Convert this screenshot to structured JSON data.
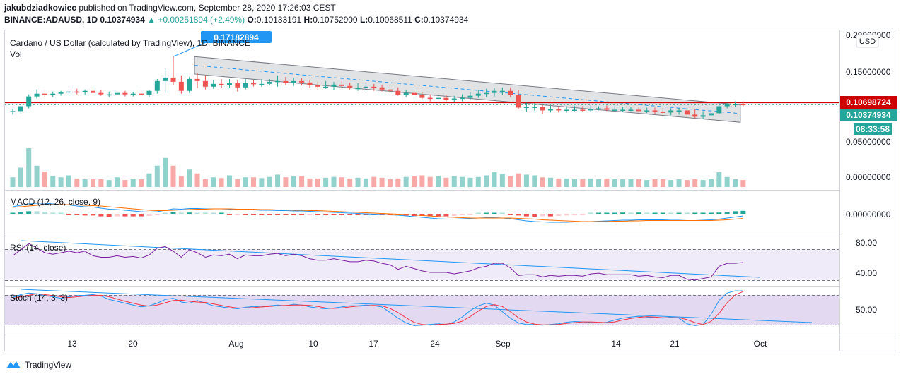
{
  "header": {
    "user": "jakubdziadkowiec",
    "published": " published on TradingView.com, September 28, 2020 17:26:03 CEST",
    "symbol": "BINANCE:ADAUSD, 1D",
    "close_value": "0.10374934",
    "change": "▲ +0.00251894 (+2.49%)",
    "o_label": "O:",
    "o_value": "0.10133191",
    "h_label": "H:",
    "h_value": "0.10752900",
    "l_label": "L:",
    "l_value": "0.10068511",
    "c_label": "C:",
    "c_value": "0.10374934"
  },
  "main_pane": {
    "title": "Cardano / US Dollar (calculated by TradingView), 1D, BINANCE",
    "vol_label": "Vol",
    "high_callout": "0.17182894",
    "currency": "USD",
    "y_ticks": [
      "0.20000000",
      "0.15000000",
      "0.10000000",
      "0.05000000",
      "0.00000000"
    ],
    "price_line_label": "0.10698724",
    "last_price_label": "0.10374934",
    "countdown_label": "08:33:58"
  },
  "macd_pane": {
    "title": "MACD (12, 26, close, 9)",
    "tick": "0.00000000"
  },
  "rsi_pane": {
    "title": "RSI (14, close)",
    "ticks": [
      "80.00",
      "40.00"
    ]
  },
  "stoch_pane": {
    "title": "Stoch (14, 3, 3)",
    "tick": "50.00"
  },
  "x_axis": {
    "labels": [
      "13",
      "20",
      "Aug",
      "10",
      "17",
      "24",
      "Sep",
      "14",
      "21",
      "Oct"
    ]
  },
  "footer": {
    "brand": "TradingView"
  },
  "colors": {
    "up": "#26a69a",
    "down": "#ef5350",
    "resistance": "#cc0000",
    "callout": "#2196f3",
    "macd": "#2196f3",
    "signal": "#ff6d00",
    "rsi": "#7b1fa2",
    "stoch_k": "#2196f3",
    "stoch_d": "#f23645"
  },
  "chart_data": [
    {
      "type": "line",
      "subtype": "candlestick",
      "title": "Cardano / US Dollar (calculated by TradingView), 1D, BINANCE",
      "x_start": "2020-07-06",
      "ylim": [
        0.02,
        0.21
      ],
      "open": [
        0.093,
        0.094,
        0.101,
        0.115,
        0.119,
        0.117,
        0.119,
        0.121,
        0.122,
        0.121,
        0.123,
        0.12,
        0.118,
        0.118,
        0.12,
        0.118,
        0.119,
        0.117,
        0.123,
        0.137,
        0.142,
        0.136,
        0.123,
        0.14,
        0.137,
        0.129,
        0.133,
        0.131,
        0.134,
        0.128,
        0.134,
        0.133,
        0.133,
        0.136,
        0.137,
        0.134,
        0.137,
        0.135,
        0.131,
        0.129,
        0.129,
        0.132,
        0.13,
        0.127,
        0.127,
        0.129,
        0.128,
        0.125,
        0.123,
        0.117,
        0.12,
        0.117,
        0.113,
        0.112,
        0.113,
        0.11,
        0.112,
        0.113,
        0.116,
        0.119,
        0.12,
        0.123,
        0.123,
        0.117,
        0.099,
        0.1,
        0.1,
        0.095,
        0.097,
        0.095,
        0.096,
        0.096,
        0.095,
        0.097,
        0.098,
        0.096,
        0.096,
        0.096,
        0.096,
        0.094,
        0.095,
        0.093,
        0.092,
        0.095,
        0.095,
        0.089,
        0.086,
        0.088,
        0.091,
        0.101,
        0.104,
        0.104
      ],
      "high": [
        0.097,
        0.103,
        0.118,
        0.125,
        0.124,
        0.122,
        0.123,
        0.126,
        0.126,
        0.125,
        0.127,
        0.124,
        0.122,
        0.121,
        0.123,
        0.121,
        0.124,
        0.124,
        0.14,
        0.155,
        0.172,
        0.145,
        0.143,
        0.148,
        0.145,
        0.139,
        0.14,
        0.14,
        0.139,
        0.14,
        0.139,
        0.14,
        0.14,
        0.145,
        0.143,
        0.142,
        0.141,
        0.139,
        0.136,
        0.137,
        0.136,
        0.137,
        0.135,
        0.134,
        0.134,
        0.133,
        0.132,
        0.131,
        0.128,
        0.124,
        0.124,
        0.121,
        0.118,
        0.117,
        0.117,
        0.116,
        0.118,
        0.121,
        0.124,
        0.126,
        0.127,
        0.128,
        0.128,
        0.124,
        0.106,
        0.105,
        0.103,
        0.102,
        0.101,
        0.101,
        0.101,
        0.101,
        0.102,
        0.101,
        0.102,
        0.101,
        0.1,
        0.1,
        0.1,
        0.099,
        0.099,
        0.099,
        0.098,
        0.098,
        0.098,
        0.097,
        0.094,
        0.096,
        0.106,
        0.106,
        0.108,
        0.108
      ],
      "low": [
        0.089,
        0.091,
        0.098,
        0.112,
        0.115,
        0.114,
        0.116,
        0.118,
        0.118,
        0.117,
        0.117,
        0.116,
        0.114,
        0.116,
        0.115,
        0.115,
        0.116,
        0.114,
        0.119,
        0.12,
        0.132,
        0.119,
        0.12,
        0.127,
        0.125,
        0.126,
        0.127,
        0.127,
        0.122,
        0.125,
        0.129,
        0.129,
        0.131,
        0.129,
        0.131,
        0.13,
        0.131,
        0.127,
        0.125,
        0.126,
        0.124,
        0.126,
        0.124,
        0.123,
        0.123,
        0.123,
        0.122,
        0.119,
        0.116,
        0.114,
        0.114,
        0.111,
        0.108,
        0.106,
        0.108,
        0.107,
        0.108,
        0.11,
        0.113,
        0.114,
        0.115,
        0.117,
        0.114,
        0.097,
        0.093,
        0.095,
        0.09,
        0.092,
        0.092,
        0.092,
        0.094,
        0.093,
        0.093,
        0.095,
        0.094,
        0.094,
        0.093,
        0.094,
        0.092,
        0.091,
        0.09,
        0.089,
        0.088,
        0.089,
        0.085,
        0.084,
        0.083,
        0.086,
        0.09,
        0.098,
        0.1,
        0.101
      ],
      "close": [
        0.094,
        0.101,
        0.115,
        0.119,
        0.117,
        0.119,
        0.121,
        0.122,
        0.121,
        0.123,
        0.12,
        0.118,
        0.118,
        0.12,
        0.118,
        0.119,
        0.117,
        0.123,
        0.137,
        0.142,
        0.136,
        0.123,
        0.14,
        0.137,
        0.129,
        0.133,
        0.131,
        0.134,
        0.128,
        0.134,
        0.133,
        0.133,
        0.136,
        0.137,
        0.134,
        0.137,
        0.135,
        0.131,
        0.129,
        0.129,
        0.132,
        0.13,
        0.127,
        0.127,
        0.129,
        0.128,
        0.125,
        0.123,
        0.117,
        0.12,
        0.117,
        0.113,
        0.112,
        0.113,
        0.11,
        0.112,
        0.113,
        0.116,
        0.119,
        0.12,
        0.123,
        0.123,
        0.117,
        0.099,
        0.1,
        0.1,
        0.095,
        0.097,
        0.095,
        0.096,
        0.096,
        0.095,
        0.097,
        0.098,
        0.096,
        0.096,
        0.096,
        0.096,
        0.094,
        0.095,
        0.093,
        0.092,
        0.095,
        0.095,
        0.089,
        0.086,
        0.088,
        0.091,
        0.101,
        0.104,
        0.104,
        0.1037
      ],
      "volume": [
        0.25,
        0.5,
        1.0,
        0.55,
        0.4,
        0.28,
        0.25,
        0.3,
        0.22,
        0.2,
        0.2,
        0.2,
        0.18,
        0.25,
        0.18,
        0.2,
        0.2,
        0.35,
        0.55,
        0.75,
        0.55,
        0.28,
        0.45,
        0.35,
        0.2,
        0.25,
        0.23,
        0.3,
        0.2,
        0.25,
        0.25,
        0.23,
        0.26,
        0.32,
        0.25,
        0.28,
        0.28,
        0.22,
        0.22,
        0.24,
        0.26,
        0.25,
        0.22,
        0.24,
        0.22,
        0.26,
        0.24,
        0.2,
        0.22,
        0.26,
        0.28,
        0.3,
        0.26,
        0.28,
        0.24,
        0.28,
        0.26,
        0.24,
        0.26,
        0.3,
        0.38,
        0.34,
        0.28,
        0.35,
        0.32,
        0.3,
        0.25,
        0.24,
        0.22,
        0.22,
        0.2,
        0.2,
        0.22,
        0.2,
        0.22,
        0.2,
        0.2,
        0.2,
        0.2,
        0.18,
        0.2,
        0.2,
        0.18,
        0.2,
        0.18,
        0.2,
        0.18,
        0.2,
        0.38,
        0.26,
        0.2,
        0.18
      ],
      "resistance_level": 0.10698724,
      "last_price": 0.10374934
    },
    {
      "type": "line",
      "title": "MACD (12, 26, close, 9)",
      "series": [
        {
          "name": "MACD",
          "values": [
            0.02,
            0.024,
            0.028,
            0.03,
            0.03,
            0.028,
            0.026,
            0.025,
            0.022,
            0.02,
            0.019,
            0.016,
            0.013,
            0.012,
            0.01,
            0.008,
            0.006,
            0.005,
            0.006,
            0.01,
            0.014,
            0.013,
            0.015,
            0.015,
            0.014,
            0.014,
            0.014,
            0.013,
            0.012,
            0.012,
            0.011,
            0.01,
            0.01,
            0.009,
            0.009,
            0.008,
            0.008,
            0.007,
            0.006,
            0.005,
            0.004,
            0.003,
            0.002,
            0.001,
            0.0,
            -0.001,
            -0.002,
            -0.003,
            -0.004,
            -0.006,
            -0.008,
            -0.01,
            -0.012,
            -0.014,
            -0.015,
            -0.015,
            -0.014,
            -0.013,
            -0.012,
            -0.011,
            -0.011,
            -0.012,
            -0.014,
            -0.017,
            -0.02,
            -0.022,
            -0.023,
            -0.024,
            -0.024,
            -0.024,
            -0.023,
            -0.023,
            -0.022,
            -0.021,
            -0.02,
            -0.019,
            -0.018,
            -0.018,
            -0.017,
            -0.017,
            -0.017,
            -0.017,
            -0.018,
            -0.018,
            -0.019,
            -0.019,
            -0.018,
            -0.017,
            -0.015,
            -0.012,
            -0.009,
            -0.006
          ]
        },
        {
          "name": "Signal",
          "values": [
            0.018,
            0.02,
            0.022,
            0.024,
            0.025,
            0.026,
            0.026,
            0.026,
            0.025,
            0.024,
            0.023,
            0.022,
            0.02,
            0.018,
            0.016,
            0.014,
            0.012,
            0.01,
            0.009,
            0.009,
            0.01,
            0.011,
            0.012,
            0.013,
            0.013,
            0.014,
            0.014,
            0.014,
            0.013,
            0.013,
            0.013,
            0.012,
            0.012,
            0.011,
            0.011,
            0.01,
            0.01,
            0.009,
            0.009,
            0.008,
            0.007,
            0.006,
            0.005,
            0.004,
            0.003,
            0.002,
            0.001,
            0.0,
            -0.001,
            -0.002,
            -0.003,
            -0.005,
            -0.006,
            -0.008,
            -0.009,
            -0.01,
            -0.011,
            -0.012,
            -0.012,
            -0.012,
            -0.012,
            -0.012,
            -0.012,
            -0.013,
            -0.014,
            -0.015,
            -0.017,
            -0.018,
            -0.019,
            -0.02,
            -0.021,
            -0.022,
            -0.022,
            -0.022,
            -0.022,
            -0.021,
            -0.021,
            -0.02,
            -0.02,
            -0.019,
            -0.019,
            -0.019,
            -0.019,
            -0.019,
            -0.019,
            -0.019,
            -0.019,
            -0.019,
            -0.018,
            -0.017,
            -0.015,
            -0.013
          ]
        }
      ]
    },
    {
      "type": "line",
      "title": "RSI (14, close)",
      "ylim": [
        20,
        90
      ],
      "series": [
        {
          "name": "RSI",
          "values": [
            62,
            70,
            78,
            72,
            66,
            64,
            66,
            68,
            66,
            68,
            62,
            60,
            60,
            62,
            60,
            61,
            59,
            63,
            72,
            74,
            68,
            60,
            70,
            66,
            60,
            63,
            62,
            64,
            58,
            63,
            62,
            62,
            64,
            65,
            62,
            64,
            62,
            58,
            56,
            56,
            58,
            56,
            54,
            54,
            56,
            55,
            52,
            50,
            44,
            48,
            45,
            42,
            40,
            40,
            40,
            38,
            40,
            42,
            46,
            48,
            52,
            52,
            46,
            36,
            37,
            37,
            34,
            36,
            35,
            36,
            36,
            35,
            38,
            39,
            37,
            37,
            37,
            37,
            35,
            36,
            34,
            33,
            36,
            36,
            31,
            30,
            32,
            34,
            48,
            52,
            52,
            53
          ]
        }
      ]
    },
    {
      "type": "line",
      "title": "Stoch (14, 3, 3)",
      "ylim": [
        0,
        100
      ],
      "series": [
        {
          "name": "%K",
          "values": [
            80,
            88,
            92,
            90,
            85,
            82,
            78,
            82,
            85,
            86,
            88,
            84,
            75,
            70,
            65,
            60,
            55,
            58,
            65,
            75,
            78,
            68,
            65,
            72,
            65,
            58,
            55,
            52,
            50,
            54,
            56,
            55,
            58,
            60,
            58,
            62,
            60,
            55,
            52,
            50,
            52,
            55,
            58,
            58,
            60,
            58,
            55,
            40,
            25,
            12,
            5,
            6,
            8,
            10,
            8,
            15,
            28,
            45,
            58,
            65,
            60,
            42,
            25,
            12,
            8,
            8,
            6,
            8,
            10,
            14,
            16,
            15,
            14,
            12,
            14,
            20,
            25,
            28,
            30,
            28,
            26,
            25,
            28,
            25,
            10,
            5,
            8,
            35,
            72,
            92,
            98,
            98
          ]
        },
        {
          "name": "%D",
          "values": [
            78,
            82,
            86,
            90,
            88,
            85,
            82,
            80,
            82,
            84,
            86,
            86,
            82,
            76,
            70,
            65,
            60,
            57,
            60,
            66,
            72,
            73,
            70,
            68,
            67,
            63,
            59,
            55,
            52,
            52,
            53,
            55,
            56,
            58,
            59,
            60,
            60,
            59,
            56,
            52,
            51,
            52,
            55,
            57,
            58,
            59,
            58,
            51,
            40,
            26,
            14,
            8,
            6,
            8,
            9,
            11,
            17,
            29,
            44,
            56,
            61,
            56,
            42,
            26,
            15,
            9,
            7,
            7,
            8,
            11,
            13,
            15,
            15,
            14,
            13,
            15,
            20,
            24,
            27,
            29,
            28,
            26,
            26,
            26,
            21,
            13,
            8,
            16,
            38,
            66,
            87,
            96
          ]
        }
      ]
    }
  ]
}
